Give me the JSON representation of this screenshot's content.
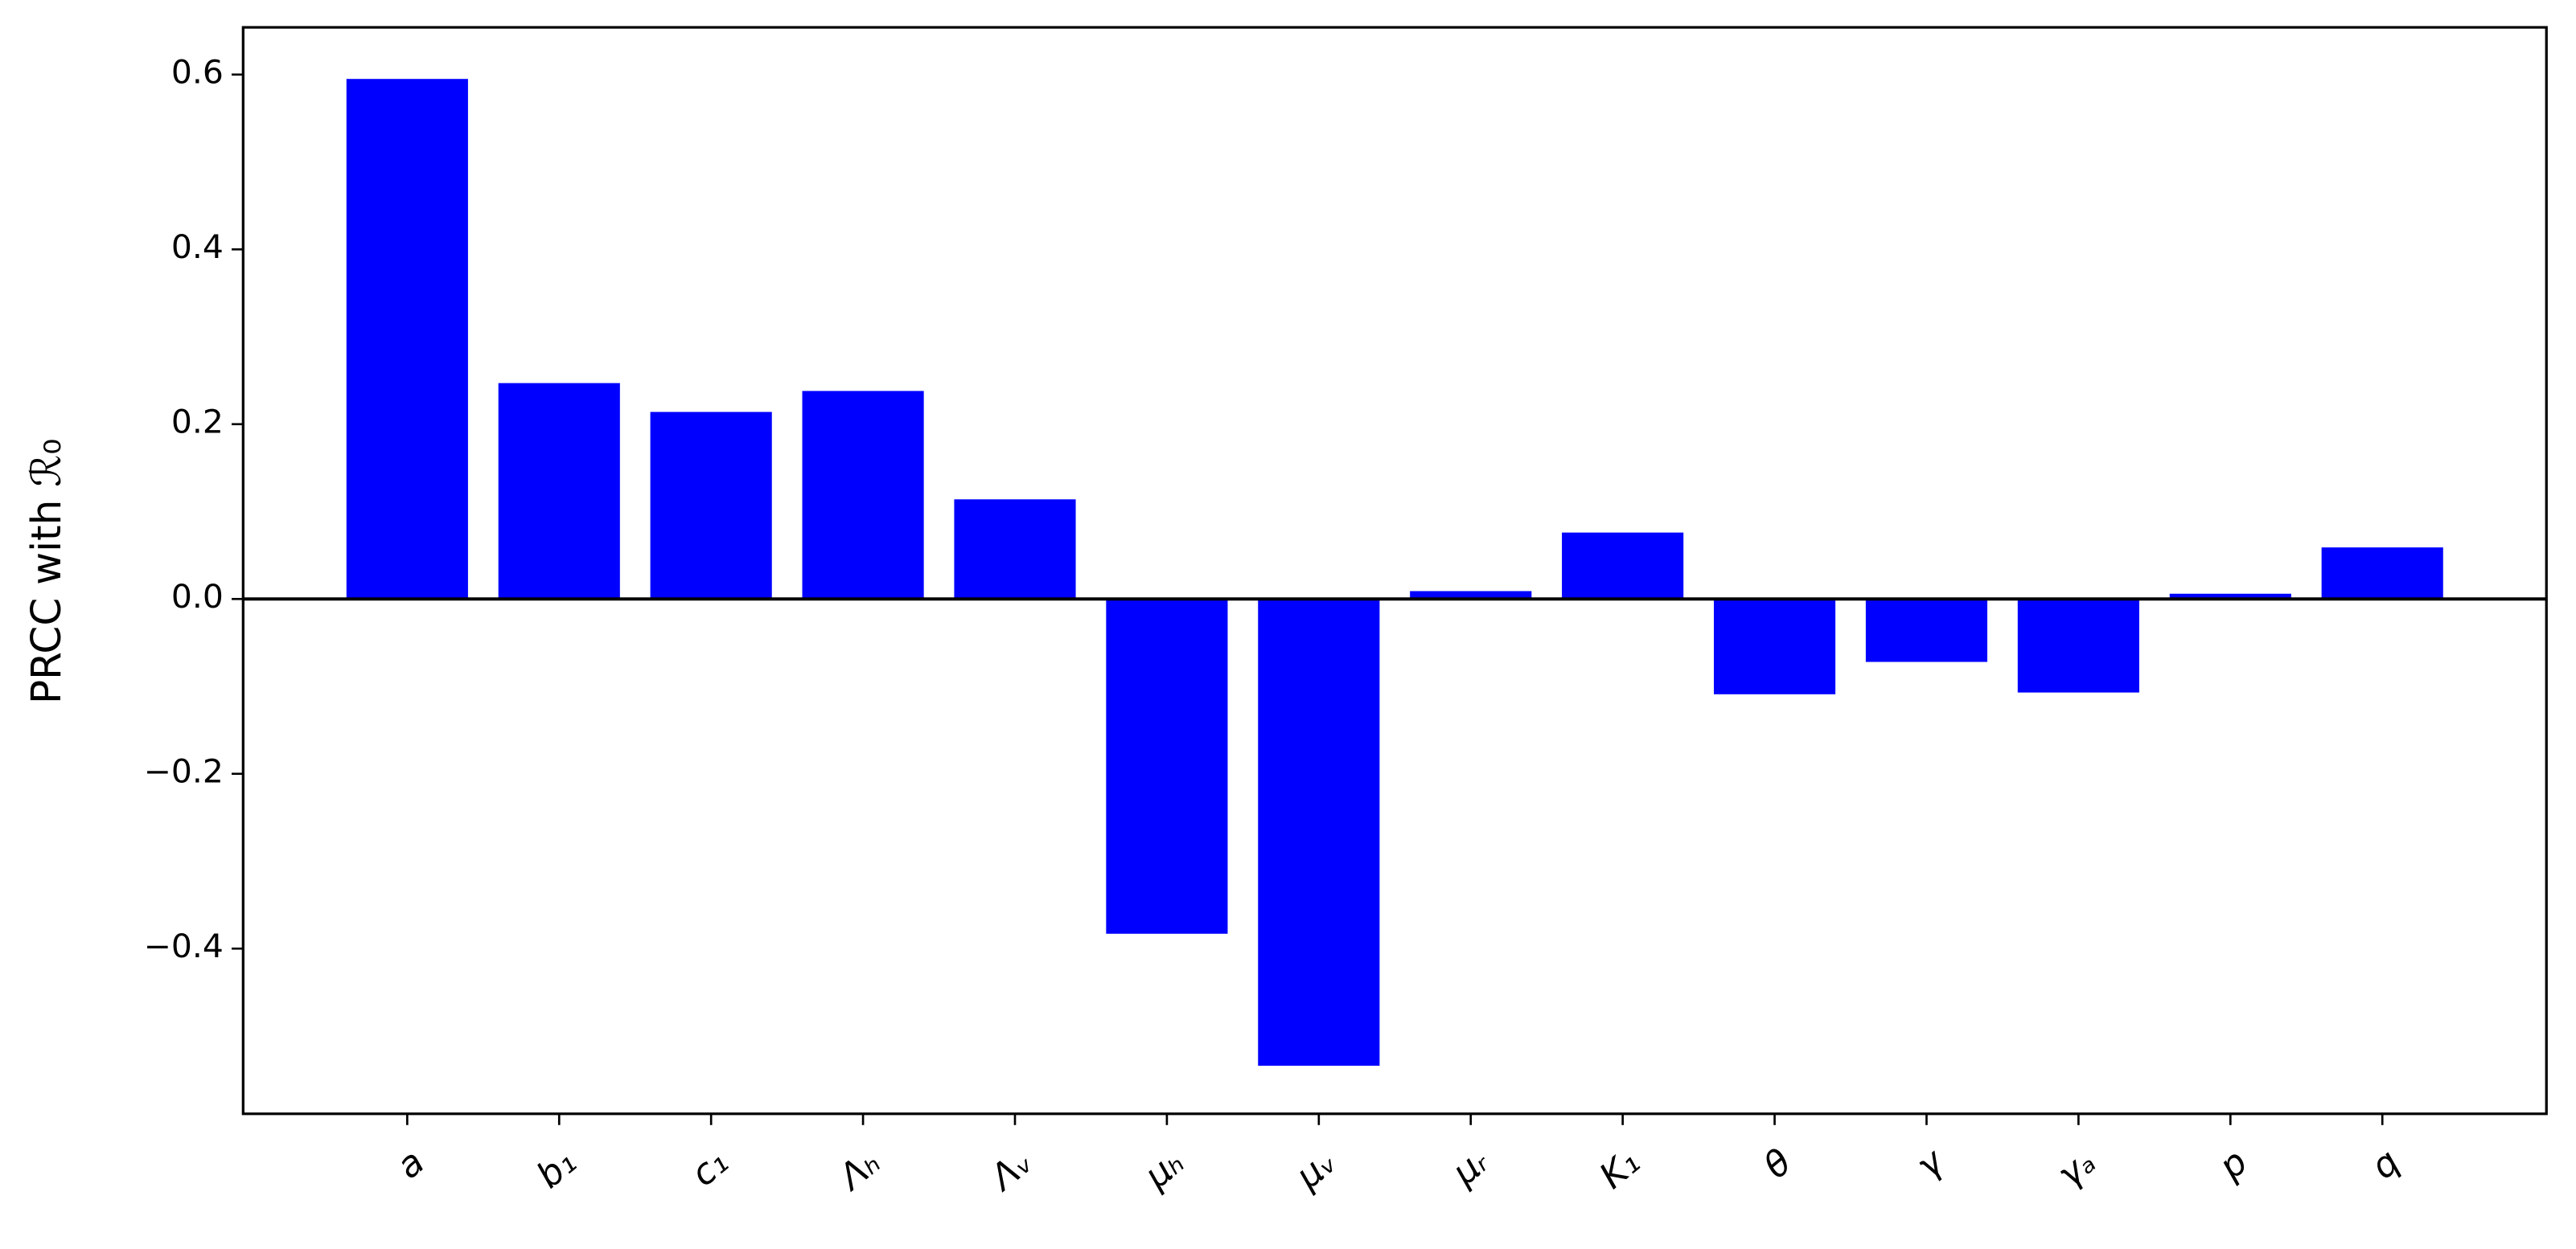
{
  "chart_data": {
    "type": "bar",
    "y_label": "PRCC with ℛ₀",
    "categories": [
      "a",
      "b₁",
      "c₁",
      "Λₕ",
      "Λᵥ",
      "μₕ",
      "μᵥ",
      "μᵣ",
      "K₁",
      "θ",
      "γ",
      "γₐ",
      "p",
      "q"
    ],
    "values": [
      0.595,
      0.247,
      0.214,
      0.238,
      0.114,
      -0.383,
      -0.534,
      0.009,
      0.076,
      -0.109,
      -0.072,
      -0.107,
      0.006,
      0.059
    ],
    "color": "#0000ff",
    "ylim": [
      -0.589,
      0.654
    ],
    "yticks": [
      {
        "value": -0.4,
        "label": "−0.4"
      },
      {
        "value": -0.2,
        "label": "−0.2"
      },
      {
        "value": 0,
        "label": "0.0"
      },
      0.2,
      0.4,
      0.6
    ],
    "grid": false
  }
}
